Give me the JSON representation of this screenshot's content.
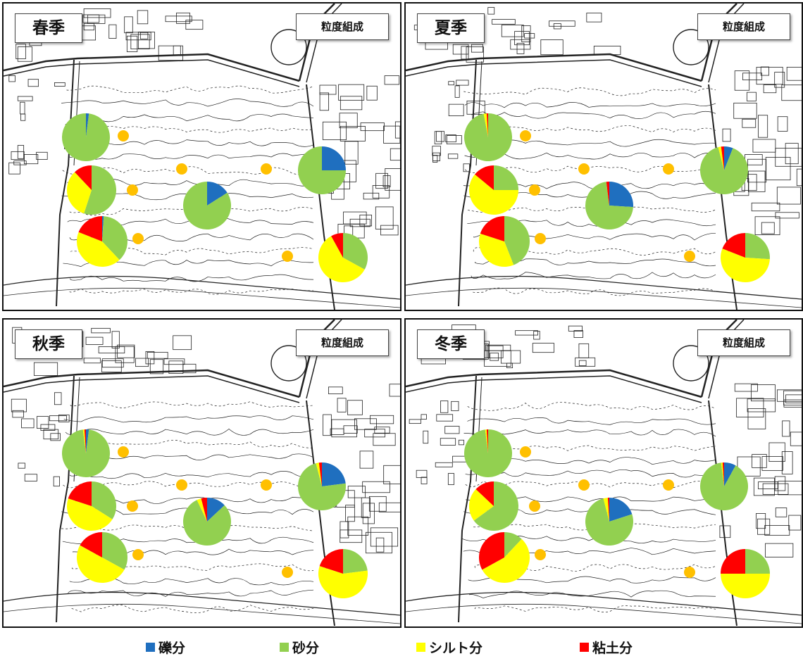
{
  "map_title": "粒度組成",
  "colors": {
    "gravel": "#1f6fbf",
    "sand": "#92d050",
    "silt": "#ffff00",
    "clay": "#ff0000",
    "station": "#ffc000"
  },
  "panels": [
    {
      "season": "春季",
      "pies": [
        {
          "shares": [
            0.02,
            0.98,
            0.0,
            0.0
          ]
        },
        {
          "shares": [
            0.0,
            0.55,
            0.33,
            0.12
          ]
        },
        {
          "shares": [
            0.01,
            0.37,
            0.43,
            0.19
          ]
        },
        {
          "shares": [
            0.16,
            0.84,
            0.0,
            0.0
          ]
        },
        {
          "shares": [
            0.25,
            0.75,
            0.0,
            0.0
          ]
        },
        {
          "shares": [
            0.0,
            0.33,
            0.59,
            0.08
          ]
        }
      ]
    },
    {
      "season": "夏季",
      "pies": [
        {
          "shares": [
            0.0,
            0.97,
            0.02,
            0.01
          ]
        },
        {
          "shares": [
            0.0,
            0.25,
            0.61,
            0.14
          ]
        },
        {
          "shares": [
            0.0,
            0.44,
            0.36,
            0.2
          ]
        },
        {
          "shares": [
            0.26,
            0.72,
            0.0,
            0.02
          ]
        },
        {
          "shares": [
            0.06,
            0.9,
            0.02,
            0.02
          ]
        },
        {
          "shares": [
            0.0,
            0.26,
            0.55,
            0.19
          ]
        }
      ]
    },
    {
      "season": "秋季",
      "pies": [
        {
          "shares": [
            0.02,
            0.96,
            0.01,
            0.01
          ]
        },
        {
          "shares": [
            0.0,
            0.34,
            0.46,
            0.2
          ]
        },
        {
          "shares": [
            0.0,
            0.33,
            0.5,
            0.17
          ]
        },
        {
          "shares": [
            0.13,
            0.8,
            0.03,
            0.04
          ]
        },
        {
          "shares": [
            0.23,
            0.73,
            0.02,
            0.02
          ]
        },
        {
          "shares": [
            0.0,
            0.23,
            0.57,
            0.2
          ]
        }
      ]
    },
    {
      "season": "冬季",
      "pies": [
        {
          "shares": [
            0.0,
            0.98,
            0.01,
            0.01
          ]
        },
        {
          "shares": [
            0.0,
            0.65,
            0.22,
            0.13
          ]
        },
        {
          "shares": [
            0.0,
            0.12,
            0.55,
            0.33
          ]
        },
        {
          "shares": [
            0.2,
            0.76,
            0.03,
            0.01
          ]
        },
        {
          "shares": [
            0.08,
            0.9,
            0.01,
            0.01
          ]
        },
        {
          "shares": [
            0.0,
            0.25,
            0.5,
            0.25
          ]
        }
      ]
    }
  ],
  "legend": [
    {
      "key": "gravel",
      "label": "礫分"
    },
    {
      "key": "sand",
      "label": "砂分"
    },
    {
      "key": "silt",
      "label": "シルト分"
    },
    {
      "key": "clay",
      "label": "粘土分"
    }
  ]
}
